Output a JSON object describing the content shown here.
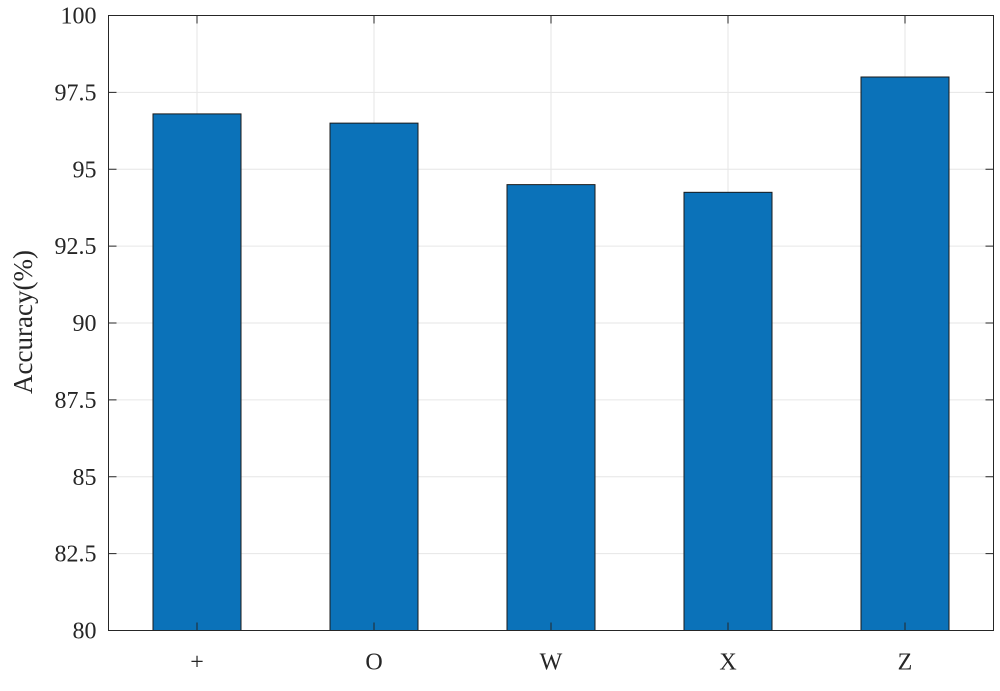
{
  "chart_data": {
    "type": "bar",
    "categories": [
      "+",
      "O",
      "W",
      "X",
      "Z"
    ],
    "values": [
      96.8,
      96.5,
      94.5,
      94.25,
      98.0
    ],
    "title": "",
    "xlabel": "",
    "ylabel": "Accuracy(%)",
    "ylim": [
      80,
      100
    ],
    "yticks": [
      "80",
      "82.5",
      "85",
      "87.5",
      "90",
      "92.5",
      "95",
      "97.5",
      "100"
    ],
    "grid": true,
    "bar_color": "#0b72b9",
    "edge_color": "#1a1a1a"
  }
}
